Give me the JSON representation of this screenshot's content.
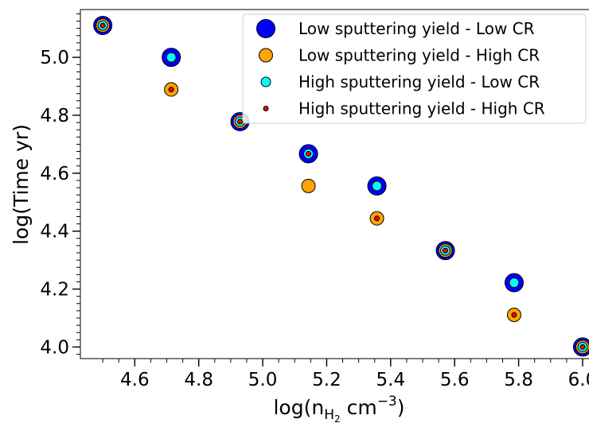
{
  "chart_data": {
    "type": "scatter",
    "xlabel": "log(n",
    "xlabel_sub": "H",
    "xlabel_subsub": "2",
    "xlabel_unit": " cm",
    "xlabel_exp": "−3",
    "xlabel_close": ")",
    "ylabel": "log(Time yr)",
    "xlim": [
      4.43,
      6.02
    ],
    "ylim": [
      3.96,
      5.165
    ],
    "xticks": [
      4.6,
      4.8,
      5.0,
      5.2,
      5.4,
      5.6,
      5.8,
      6.0
    ],
    "xtick_labels": [
      "4.6",
      "4.8",
      "5.0",
      "5.2",
      "5.4",
      "5.6",
      "5.8",
      "6.0"
    ],
    "yticks": [
      4.0,
      4.2,
      4.4,
      4.6,
      4.8,
      5.0
    ],
    "ytick_labels": [
      "4.0",
      "4.2",
      "4.4",
      "4.6",
      "4.8",
      "5.0"
    ],
    "grid": false,
    "legend_position": "top-right",
    "series": [
      {
        "name": "Low sputtering yield - Low CR",
        "color": "#0000ff",
        "marker_size": "largest",
        "points": [
          [
            4.5,
            5.11
          ],
          [
            4.714,
            5.0
          ],
          [
            4.929,
            4.778
          ],
          [
            5.143,
            4.667
          ],
          [
            5.357,
            4.556
          ],
          [
            5.571,
            4.333
          ],
          [
            5.786,
            4.222
          ],
          [
            6.0,
            4.0
          ]
        ]
      },
      {
        "name": "Low sputtering yield - High CR",
        "color": "#ffa500",
        "marker_size": "large",
        "points": [
          [
            4.5,
            5.11
          ],
          [
            4.714,
            4.889
          ],
          [
            4.929,
            4.778
          ],
          [
            5.143,
            4.556
          ],
          [
            5.357,
            4.444
          ],
          [
            5.571,
            4.333
          ],
          [
            5.786,
            4.111
          ],
          [
            6.0,
            4.0
          ]
        ]
      },
      {
        "name": "High sputtering yield - Low CR",
        "color": "#00ffff",
        "marker_size": "medium",
        "points": [
          [
            4.5,
            5.11
          ],
          [
            4.714,
            5.0
          ],
          [
            4.929,
            4.778
          ],
          [
            5.143,
            4.667
          ],
          [
            5.357,
            4.556
          ],
          [
            5.571,
            4.333
          ],
          [
            5.786,
            4.222
          ],
          [
            6.0,
            4.0
          ]
        ]
      },
      {
        "name": "High sputtering yield - High CR",
        "color": "#ff0000",
        "marker_size": "small",
        "points": [
          [
            4.5,
            5.11
          ],
          [
            4.714,
            4.889
          ],
          [
            4.929,
            4.778
          ],
          [
            5.143,
            4.667
          ],
          [
            5.357,
            4.444
          ],
          [
            5.571,
            4.333
          ],
          [
            5.786,
            4.111
          ],
          [
            6.0,
            4.0
          ]
        ]
      }
    ]
  }
}
